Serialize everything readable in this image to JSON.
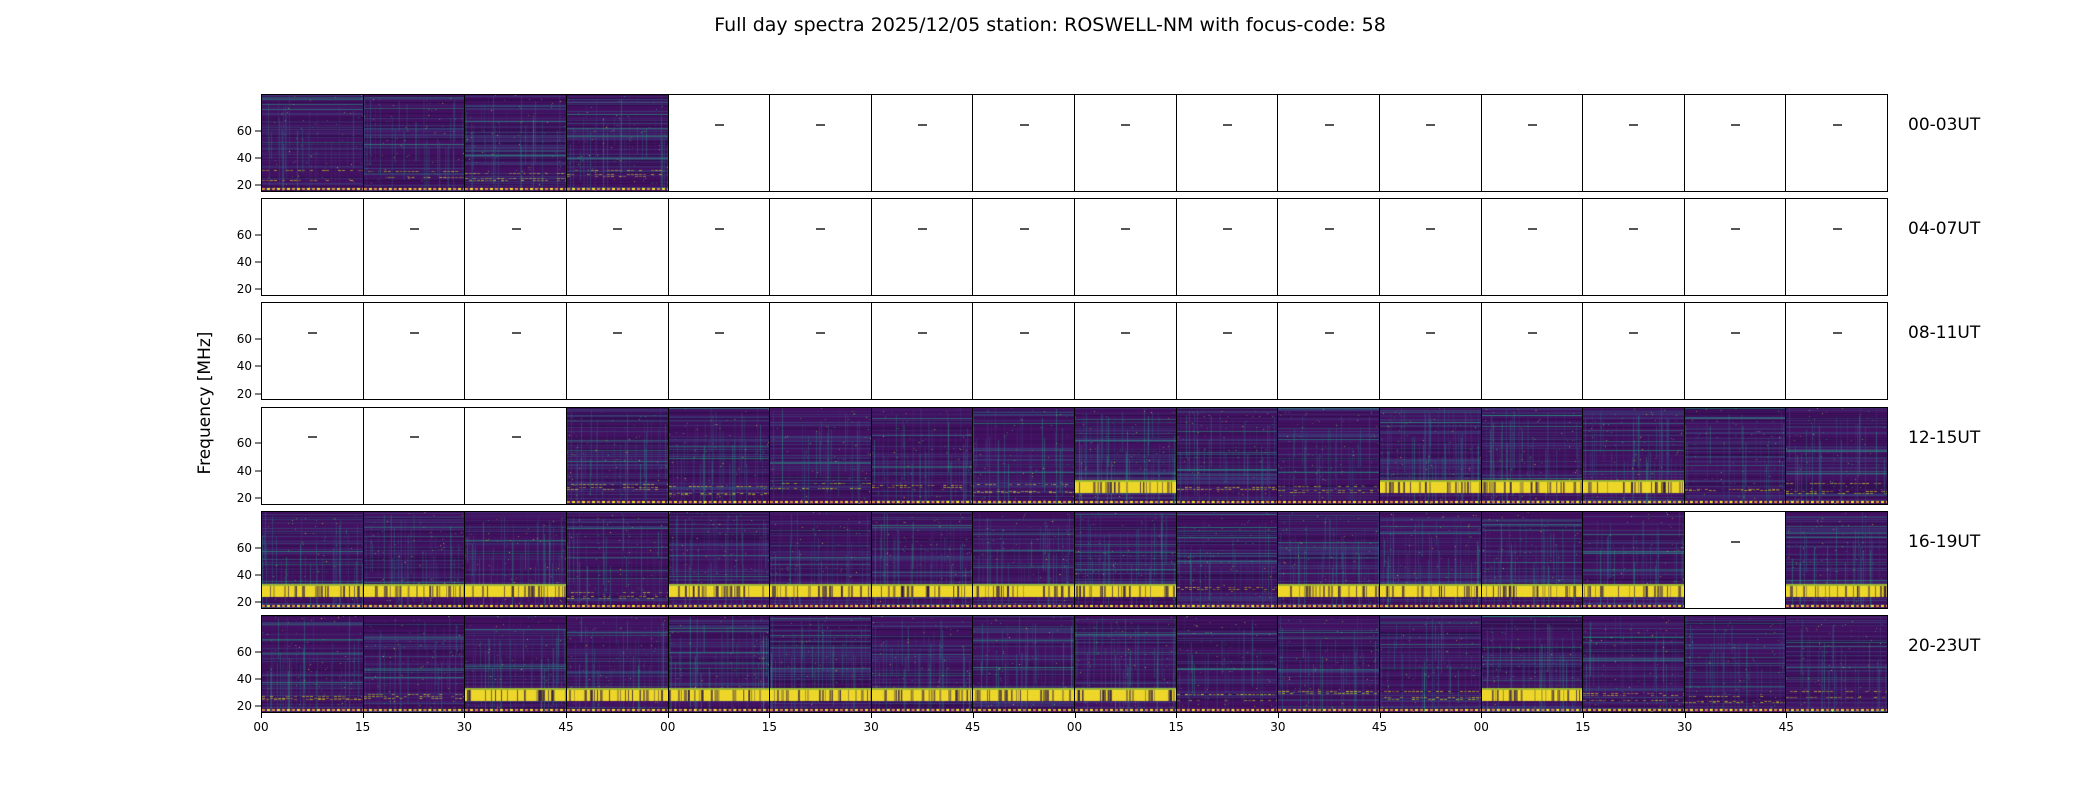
{
  "title": "Full day spectra 2025/12/05 station: ROSWELL-NM with focus-code: 58",
  "axes": {
    "ylabel": "Frequency [MHz]",
    "yticks": [
      "60",
      "40",
      "20"
    ],
    "xticks": [
      "00",
      "15",
      "30",
      "45",
      "00",
      "15",
      "30",
      "45",
      "00",
      "15",
      "30",
      "45",
      "00",
      "15",
      "30",
      "45"
    ]
  },
  "colors": {
    "background": "#ffffff",
    "axis": "#000000",
    "cmap_dark_purple": "#440154",
    "cmap_indigo": "#414487",
    "cmap_blue": "#355f8d",
    "cmap_teal": "#2a788e",
    "cmap_green": "#22a884",
    "cmap_lime": "#7ad151",
    "cmap_yellow": "#fde725",
    "rfi_orange": "#e08f3c"
  },
  "chart_data": {
    "type": "heatmap",
    "subtype": "radio-spectrogram-daily-grid",
    "title": "Full day spectra 2025/12/05 station: ROSWELL-NM with focus-code: 58",
    "date": "2025/12/05",
    "station": "ROSWELL-NM",
    "focus_code": 58,
    "ylabel": "Frequency [MHz]",
    "y_range_mhz": [
      15,
      87
    ],
    "yticks_mhz": [
      60,
      40,
      20
    ],
    "x_tick_minutes": [
      "00",
      "15",
      "30",
      "45",
      "00",
      "15",
      "30",
      "45",
      "00",
      "15",
      "30",
      "45",
      "00",
      "15",
      "30",
      "45"
    ],
    "segments_per_row": 16,
    "segment_duration_min": 15,
    "hours_per_row": 4,
    "colormap": "viridis",
    "legend": "none",
    "grid": "per-segment black frames",
    "panel_legend": {
      "0": "no data (blank panel)",
      "1": "spectrogram data",
      "2": "spectrogram data with strong low-frequency RFI band"
    },
    "rows": [
      {
        "label": "00-03UT",
        "panels": [
          1,
          1,
          1,
          1,
          0,
          0,
          0,
          0,
          0,
          0,
          0,
          0,
          0,
          0,
          0,
          0
        ]
      },
      {
        "label": "04-07UT",
        "panels": [
          0,
          0,
          0,
          0,
          0,
          0,
          0,
          0,
          0,
          0,
          0,
          0,
          0,
          0,
          0,
          0
        ]
      },
      {
        "label": "08-11UT",
        "panels": [
          0,
          0,
          0,
          0,
          0,
          0,
          0,
          0,
          0,
          0,
          0,
          0,
          0,
          0,
          0,
          0
        ]
      },
      {
        "label": "12-15UT",
        "panels": [
          0,
          0,
          0,
          1,
          1,
          1,
          1,
          1,
          2,
          1,
          1,
          2,
          2,
          2,
          1,
          1
        ]
      },
      {
        "label": "16-19UT",
        "panels": [
          2,
          2,
          2,
          1,
          2,
          2,
          2,
          2,
          2,
          1,
          2,
          2,
          2,
          2,
          0,
          2
        ]
      },
      {
        "label": "20-23UT",
        "panels": [
          1,
          1,
          2,
          2,
          2,
          2,
          2,
          2,
          2,
          1,
          1,
          1,
          2,
          1,
          1,
          1
        ]
      }
    ]
  }
}
